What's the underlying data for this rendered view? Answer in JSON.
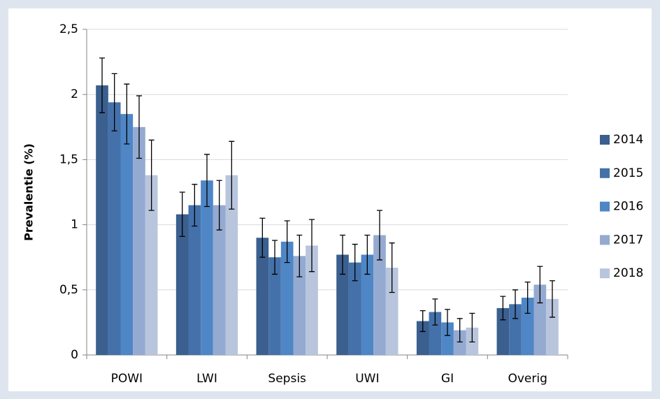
{
  "chart_data": {
    "type": "bar",
    "y_label": "Prevalentie (%)",
    "categories": [
      "POWI",
      "LWI",
      "Sepsis",
      "UWI",
      "GI",
      "Overig"
    ],
    "series": [
      {
        "name": "2014",
        "color": "#3b5f8e",
        "values": [
          2.07,
          1.08,
          0.9,
          0.77,
          0.26,
          0.36
        ],
        "errors": [
          0.21,
          0.17,
          0.15,
          0.15,
          0.08,
          0.09
        ]
      },
      {
        "name": "2015",
        "color": "#4471aa",
        "values": [
          1.94,
          1.15,
          0.75,
          0.71,
          0.33,
          0.39
        ],
        "errors": [
          0.22,
          0.16,
          0.13,
          0.14,
          0.1,
          0.11
        ]
      },
      {
        "name": "2016",
        "color": "#4f86c6",
        "values": [
          1.85,
          1.34,
          0.87,
          0.77,
          0.25,
          0.44
        ],
        "errors": [
          0.23,
          0.2,
          0.16,
          0.15,
          0.1,
          0.12
        ]
      },
      {
        "name": "2017",
        "color": "#95aad1",
        "values": [
          1.75,
          1.15,
          0.76,
          0.92,
          0.19,
          0.54
        ],
        "errors": [
          0.24,
          0.19,
          0.16,
          0.19,
          0.09,
          0.14
        ]
      },
      {
        "name": "2018",
        "color": "#b8c5dd",
        "values": [
          1.38,
          1.38,
          0.84,
          0.67,
          0.21,
          0.43
        ],
        "errors": [
          0.27,
          0.26,
          0.2,
          0.19,
          0.11,
          0.14
        ]
      }
    ],
    "ylim": [
      0,
      2.5
    ],
    "yticks": [
      0,
      {
        "value": 0.5,
        "label": "0,5"
      },
      1,
      {
        "value": 1.5,
        "label": "1,5"
      },
      2,
      {
        "value": 2.5,
        "label": "2,5"
      }
    ],
    "grid": true,
    "legend": "right"
  }
}
